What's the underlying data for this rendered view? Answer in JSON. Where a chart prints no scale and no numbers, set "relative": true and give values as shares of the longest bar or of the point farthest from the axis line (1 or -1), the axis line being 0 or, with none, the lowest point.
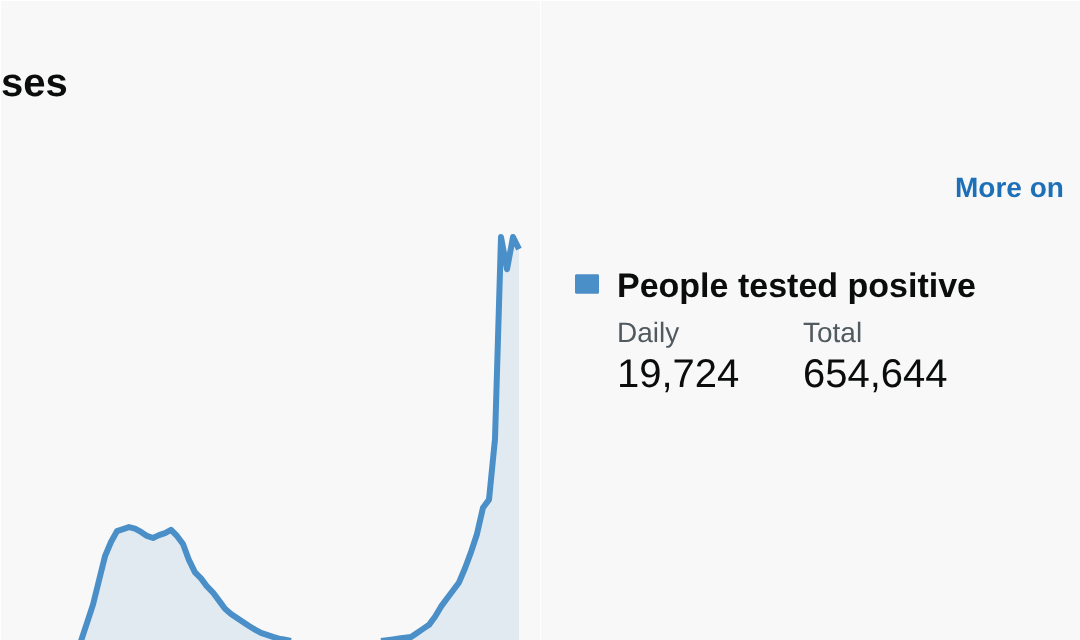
{
  "chart_data": [
    {
      "type": "area",
      "title": "ses",
      "relative": true,
      "color": "#4a8fc7",
      "categories": [
        null,
        null,
        null,
        null,
        null,
        null,
        null,
        null,
        null,
        null,
        null,
        null,
        null,
        null,
        null,
        null,
        null,
        null,
        null,
        null,
        null,
        null,
        null,
        null,
        null,
        null,
        null,
        null,
        null,
        null,
        null,
        null,
        null,
        null,
        null,
        null,
        null,
        null,
        null,
        null,
        null,
        null,
        null,
        null,
        null,
        null,
        null,
        null,
        null,
        null,
        null,
        null,
        null,
        null,
        null,
        null,
        null,
        null,
        null,
        null,
        null,
        null,
        null,
        null,
        null,
        null,
        null,
        null,
        null,
        null,
        null,
        null,
        null,
        null
      ],
      "values": [
        0,
        0.045,
        0.09,
        0.15,
        0.21,
        0.245,
        0.272,
        0.277,
        0.282,
        0.278,
        0.27,
        0.26,
        0.255,
        0.262,
        0.267,
        0.275,
        0.26,
        0.24,
        0.2,
        0.17,
        0.155,
        0.135,
        0.12,
        0.1,
        0.08,
        0.067,
        0.057,
        0.047,
        0.037,
        0.028,
        0.02,
        0.015,
        0.01,
        0.006,
        0.003,
        0,
        null,
        null,
        null,
        null,
        null,
        null,
        null,
        null,
        null,
        null,
        null,
        null,
        null,
        null,
        0,
        0.002,
        0.004,
        0.006,
        0.008,
        0.01,
        0.02,
        0.03,
        0.04,
        0.06,
        0.085,
        0.105,
        0.125,
        0.145,
        0.18,
        0.22,
        0.265,
        0.33,
        0.35,
        0.5,
        1,
        0.92,
        1,
        0.97
      ]
    },
    {
      "type": "other",
      "title": "People tested positive",
      "categories": [
        "Daily",
        "Total"
      ],
      "values": [
        19724,
        654644
      ],
      "value_labels": [
        "19,724",
        "654,644"
      ],
      "annotations": [
        "More on"
      ]
    }
  ]
}
